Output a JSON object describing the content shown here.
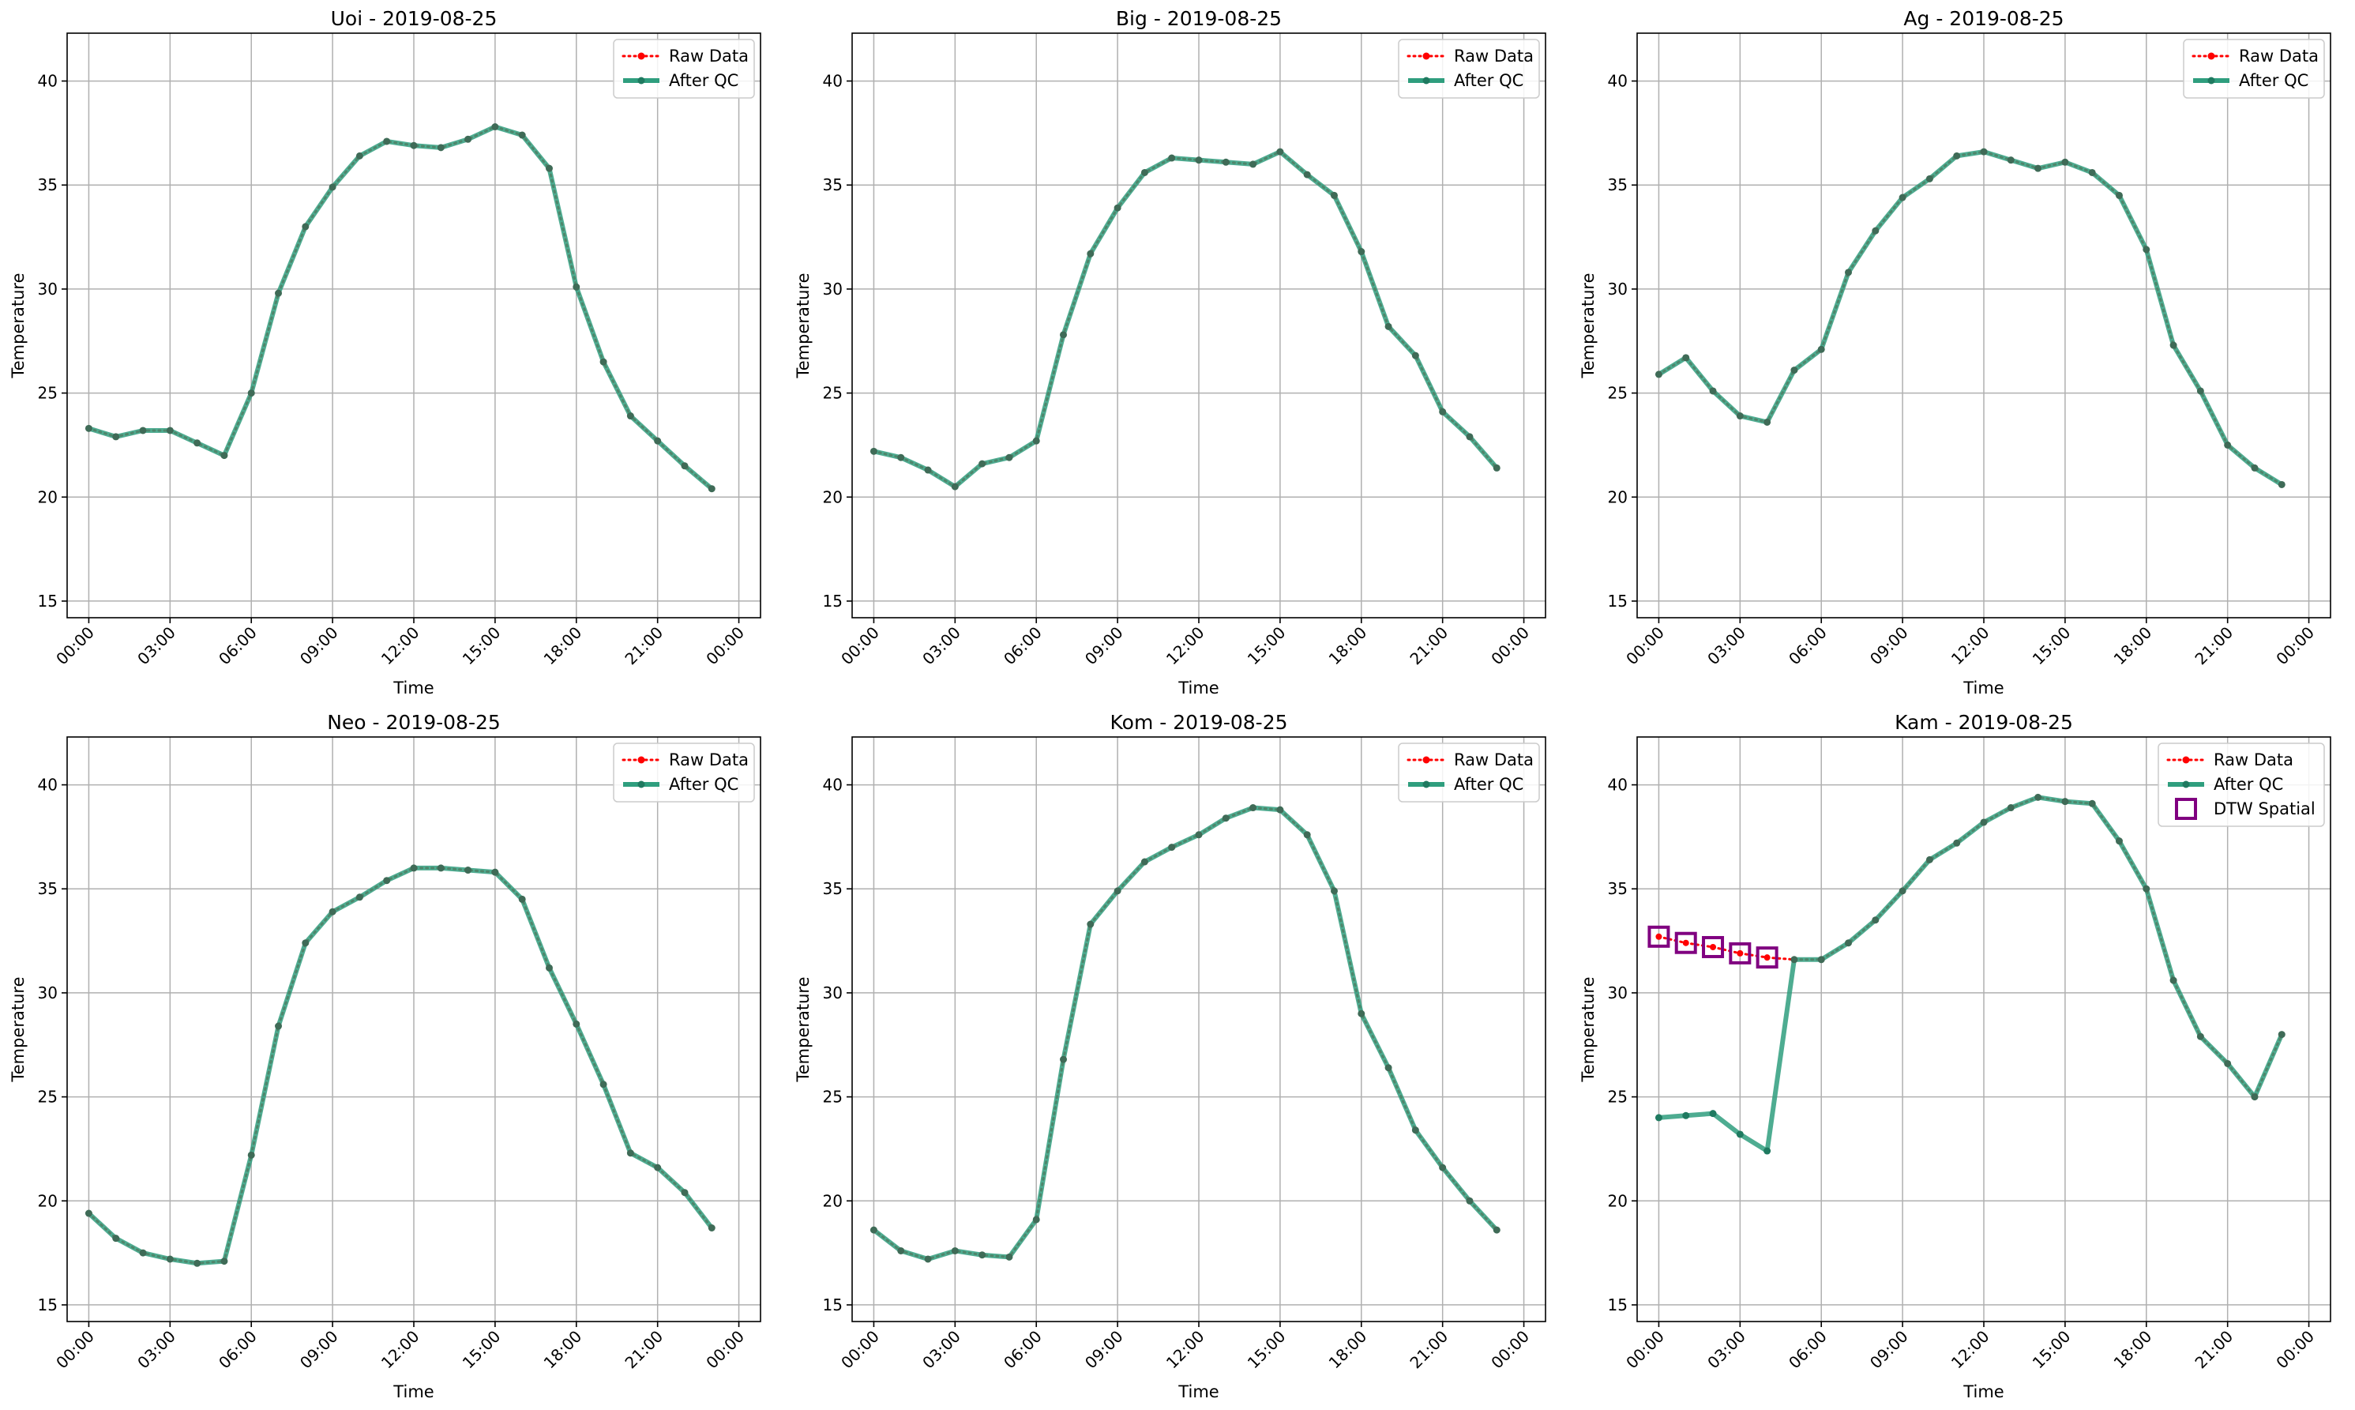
{
  "legend_labels": {
    "raw": "Raw Data",
    "qc": "After QC",
    "dtw": "DTW Spatial"
  },
  "colors": {
    "raw": "#ff0000",
    "qc": "#2f9e7e",
    "qc_marker": "#1f7a60",
    "dtw": "#800080",
    "grid": "#b0b0b0",
    "axes": "#000000"
  },
  "chart_data": [
    {
      "type": "line",
      "title": "Uoi - 2019-08-25",
      "xlabel": "Time",
      "ylabel": "Temperature",
      "x": [
        "00:00",
        "01:00",
        "02:00",
        "03:00",
        "04:00",
        "05:00",
        "06:00",
        "07:00",
        "08:00",
        "09:00",
        "10:00",
        "11:00",
        "12:00",
        "13:00",
        "14:00",
        "15:00",
        "16:00",
        "17:00",
        "18:00",
        "19:00",
        "20:00",
        "21:00",
        "22:00",
        "23:00"
      ],
      "xticks": [
        "00:00",
        "03:00",
        "06:00",
        "09:00",
        "12:00",
        "15:00",
        "18:00",
        "21:00",
        "00:00"
      ],
      "yticks": [
        15,
        20,
        25,
        30,
        35,
        40
      ],
      "ylim": [
        14.2,
        42.3
      ],
      "grid": true,
      "legend": "upper right",
      "series": [
        {
          "name": "Raw Data",
          "style": "dotted",
          "values": [
            23.3,
            22.9,
            23.2,
            23.2,
            22.6,
            22.0,
            25.0,
            29.8,
            33.0,
            34.9,
            36.4,
            37.1,
            36.9,
            36.8,
            37.2,
            37.8,
            37.4,
            35.8,
            30.1,
            26.5,
            23.9,
            22.7,
            21.5,
            20.4
          ]
        },
        {
          "name": "After QC",
          "style": "solid",
          "values": [
            23.3,
            22.9,
            23.2,
            23.2,
            22.6,
            22.0,
            25.0,
            29.8,
            33.0,
            34.9,
            36.4,
            37.1,
            36.9,
            36.8,
            37.2,
            37.8,
            37.4,
            35.8,
            30.1,
            26.5,
            23.9,
            22.7,
            21.5,
            20.4
          ]
        }
      ]
    },
    {
      "type": "line",
      "title": "Big - 2019-08-25",
      "xlabel": "Time",
      "ylabel": "Temperature",
      "x": [
        "00:00",
        "01:00",
        "02:00",
        "03:00",
        "04:00",
        "05:00",
        "06:00",
        "07:00",
        "08:00",
        "09:00",
        "10:00",
        "11:00",
        "12:00",
        "13:00",
        "14:00",
        "15:00",
        "16:00",
        "17:00",
        "18:00",
        "19:00",
        "20:00",
        "21:00",
        "22:00",
        "23:00"
      ],
      "xticks": [
        "00:00",
        "03:00",
        "06:00",
        "09:00",
        "12:00",
        "15:00",
        "18:00",
        "21:00",
        "00:00"
      ],
      "yticks": [
        15,
        20,
        25,
        30,
        35,
        40
      ],
      "ylim": [
        14.2,
        42.3
      ],
      "grid": true,
      "legend": "upper right",
      "series": [
        {
          "name": "Raw Data",
          "style": "dotted",
          "values": [
            22.2,
            21.9,
            21.3,
            20.5,
            21.6,
            21.9,
            22.7,
            27.8,
            31.7,
            33.9,
            35.6,
            36.3,
            36.2,
            36.1,
            36.0,
            36.6,
            35.5,
            34.5,
            31.8,
            28.2,
            26.8,
            24.1,
            22.9,
            21.4
          ]
        },
        {
          "name": "After QC",
          "style": "solid",
          "values": [
            22.2,
            21.9,
            21.3,
            20.5,
            21.6,
            21.9,
            22.7,
            27.8,
            31.7,
            33.9,
            35.6,
            36.3,
            36.2,
            36.1,
            36.0,
            36.6,
            35.5,
            34.5,
            31.8,
            28.2,
            26.8,
            24.1,
            22.9,
            21.4
          ]
        }
      ]
    },
    {
      "type": "line",
      "title": "Ag - 2019-08-25",
      "xlabel": "Time",
      "ylabel": "Temperature",
      "x": [
        "00:00",
        "01:00",
        "02:00",
        "03:00",
        "04:00",
        "05:00",
        "06:00",
        "07:00",
        "08:00",
        "09:00",
        "10:00",
        "11:00",
        "12:00",
        "13:00",
        "14:00",
        "15:00",
        "16:00",
        "17:00",
        "18:00",
        "19:00",
        "20:00",
        "21:00",
        "22:00",
        "23:00"
      ],
      "xticks": [
        "00:00",
        "03:00",
        "06:00",
        "09:00",
        "12:00",
        "15:00",
        "18:00",
        "21:00",
        "00:00"
      ],
      "yticks": [
        15,
        20,
        25,
        30,
        35,
        40
      ],
      "ylim": [
        14.2,
        42.3
      ],
      "grid": true,
      "legend": "upper right",
      "series": [
        {
          "name": "Raw Data",
          "style": "dotted",
          "values": [
            25.9,
            26.7,
            25.1,
            23.9,
            23.6,
            26.1,
            27.1,
            30.8,
            32.8,
            34.4,
            35.3,
            36.4,
            36.6,
            36.2,
            35.8,
            36.1,
            35.6,
            34.5,
            31.9,
            27.3,
            25.1,
            22.5,
            21.4,
            20.6
          ]
        },
        {
          "name": "After QC",
          "style": "solid",
          "values": [
            25.9,
            26.7,
            25.1,
            23.9,
            23.6,
            26.1,
            27.1,
            30.8,
            32.8,
            34.4,
            35.3,
            36.4,
            36.6,
            36.2,
            35.8,
            36.1,
            35.6,
            34.5,
            31.9,
            27.3,
            25.1,
            22.5,
            21.4,
            20.6
          ]
        }
      ]
    },
    {
      "type": "line",
      "title": "Neo - 2019-08-25",
      "xlabel": "Time",
      "ylabel": "Temperature",
      "x": [
        "00:00",
        "01:00",
        "02:00",
        "03:00",
        "04:00",
        "05:00",
        "06:00",
        "07:00",
        "08:00",
        "09:00",
        "10:00",
        "11:00",
        "12:00",
        "13:00",
        "14:00",
        "15:00",
        "16:00",
        "17:00",
        "18:00",
        "19:00",
        "20:00",
        "21:00",
        "22:00",
        "23:00"
      ],
      "xticks": [
        "00:00",
        "03:00",
        "06:00",
        "09:00",
        "12:00",
        "15:00",
        "18:00",
        "21:00",
        "00:00"
      ],
      "yticks": [
        15,
        20,
        25,
        30,
        35,
        40
      ],
      "ylim": [
        14.2,
        42.3
      ],
      "grid": true,
      "legend": "upper right",
      "series": [
        {
          "name": "Raw Data",
          "style": "dotted",
          "values": [
            19.4,
            18.2,
            17.5,
            17.2,
            17.0,
            17.1,
            22.2,
            28.4,
            32.4,
            33.9,
            34.6,
            35.4,
            36.0,
            36.0,
            35.9,
            35.8,
            34.5,
            31.2,
            28.5,
            25.6,
            22.3,
            21.6,
            20.4,
            18.7
          ]
        },
        {
          "name": "After QC",
          "style": "solid",
          "values": [
            19.4,
            18.2,
            17.5,
            17.2,
            17.0,
            17.1,
            22.2,
            28.4,
            32.4,
            33.9,
            34.6,
            35.4,
            36.0,
            36.0,
            35.9,
            35.8,
            34.5,
            31.2,
            28.5,
            25.6,
            22.3,
            21.6,
            20.4,
            18.7
          ]
        }
      ]
    },
    {
      "type": "line",
      "title": "Kom - 2019-08-25",
      "xlabel": "Time",
      "ylabel": "Temperature",
      "x": [
        "00:00",
        "01:00",
        "02:00",
        "03:00",
        "04:00",
        "05:00",
        "06:00",
        "07:00",
        "08:00",
        "09:00",
        "10:00",
        "11:00",
        "12:00",
        "13:00",
        "14:00",
        "15:00",
        "16:00",
        "17:00",
        "18:00",
        "19:00",
        "20:00",
        "21:00",
        "22:00",
        "23:00"
      ],
      "xticks": [
        "00:00",
        "03:00",
        "06:00",
        "09:00",
        "12:00",
        "15:00",
        "18:00",
        "21:00",
        "00:00"
      ],
      "yticks": [
        15,
        20,
        25,
        30,
        35,
        40
      ],
      "ylim": [
        14.2,
        42.3
      ],
      "grid": true,
      "legend": "upper right",
      "series": [
        {
          "name": "Raw Data",
          "style": "dotted",
          "values": [
            18.6,
            17.6,
            17.2,
            17.6,
            17.4,
            17.3,
            19.1,
            26.8,
            33.3,
            34.9,
            36.3,
            37.0,
            37.6,
            38.4,
            38.9,
            38.8,
            37.6,
            34.9,
            29.0,
            26.4,
            23.4,
            21.6,
            20.0,
            18.6
          ]
        },
        {
          "name": "After QC",
          "style": "solid",
          "values": [
            18.6,
            17.6,
            17.2,
            17.6,
            17.4,
            17.3,
            19.1,
            26.8,
            33.3,
            34.9,
            36.3,
            37.0,
            37.6,
            38.4,
            38.9,
            38.8,
            37.6,
            34.9,
            29.0,
            26.4,
            23.4,
            21.6,
            20.0,
            18.6
          ]
        }
      ]
    },
    {
      "type": "line",
      "title": "Kam - 2019-08-25",
      "xlabel": "Time",
      "ylabel": "Temperature",
      "x": [
        "00:00",
        "01:00",
        "02:00",
        "03:00",
        "04:00",
        "05:00",
        "06:00",
        "07:00",
        "08:00",
        "09:00",
        "10:00",
        "11:00",
        "12:00",
        "13:00",
        "14:00",
        "15:00",
        "16:00",
        "17:00",
        "18:00",
        "19:00",
        "20:00",
        "21:00",
        "22:00",
        "23:00"
      ],
      "xticks": [
        "00:00",
        "03:00",
        "06:00",
        "09:00",
        "12:00",
        "15:00",
        "18:00",
        "21:00",
        "00:00"
      ],
      "yticks": [
        15,
        20,
        25,
        30,
        35,
        40
      ],
      "ylim": [
        14.2,
        42.3
      ],
      "grid": true,
      "legend": "upper right",
      "series": [
        {
          "name": "Raw Data",
          "style": "dotted",
          "values": [
            32.7,
            32.4,
            32.2,
            31.9,
            31.7,
            31.6,
            31.6,
            32.4,
            33.5,
            34.9,
            36.4,
            37.2,
            38.2,
            38.9,
            39.4,
            39.2,
            39.1,
            37.3,
            35.0,
            30.6,
            27.9,
            26.6,
            25.0,
            28.0
          ]
        },
        {
          "name": "After QC",
          "style": "solid",
          "values": [
            24.0,
            24.1,
            24.2,
            23.2,
            22.4,
            31.6,
            31.6,
            32.4,
            33.5,
            34.9,
            36.4,
            37.2,
            38.2,
            38.9,
            39.4,
            39.2,
            39.1,
            37.3,
            35.0,
            30.6,
            27.9,
            26.6,
            25.0,
            28.0
          ]
        }
      ],
      "flags": {
        "name": "DTW Spatial",
        "x": [
          "00:00",
          "01:00",
          "02:00",
          "03:00",
          "04:00"
        ],
        "values": [
          32.7,
          32.4,
          32.2,
          31.9,
          31.7
        ]
      }
    }
  ]
}
